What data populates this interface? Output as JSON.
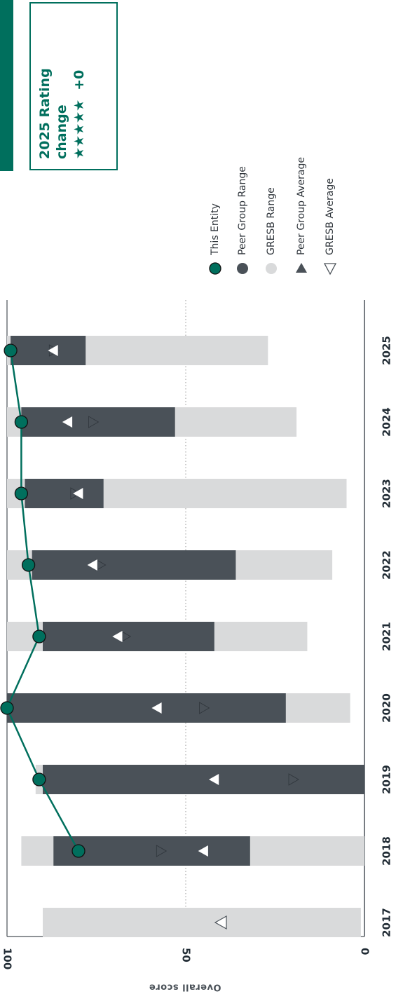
{
  "rating": {
    "title": "2025 Rating change",
    "stars": "★★★★★",
    "change": "+0",
    "accent_color": "#006f5d"
  },
  "legend": {
    "items": [
      {
        "label": "This Entity",
        "marker": "entity-circle-icon"
      },
      {
        "label": "Peer Group Range",
        "marker": "dark-circle-icon"
      },
      {
        "label": "GRESB Range",
        "marker": "light-circle-icon"
      },
      {
        "label": "Peer Group Average",
        "marker": "filled-triangle-icon"
      },
      {
        "label": "GRESB Average",
        "marker": "hollow-triangle-icon"
      }
    ]
  },
  "chart_data": {
    "type": "bar",
    "orientation": "rotated-90",
    "ylabel": "Overall score",
    "ylim": [
      0,
      100
    ],
    "yticks": [
      0,
      50,
      100
    ],
    "grid": "dotted at 50",
    "categories": [
      "2017",
      "2018",
      "2019",
      "2020",
      "2021",
      "2022",
      "2023",
      "2024",
      "2025"
    ],
    "gresb_range": [
      [
        1,
        90
      ],
      [
        0,
        96
      ],
      [
        0,
        92
      ],
      [
        4,
        100
      ],
      [
        16,
        100
      ],
      [
        9,
        100
      ],
      [
        5,
        100
      ],
      [
        19,
        100
      ],
      [
        27,
        100
      ]
    ],
    "peer_group_range": [
      [
        null,
        null
      ],
      [
        32,
        87
      ],
      [
        0,
        90
      ],
      [
        22,
        100
      ],
      [
        42,
        90
      ],
      [
        36,
        93
      ],
      [
        73,
        95
      ],
      [
        53,
        96
      ],
      [
        78,
        99
      ]
    ],
    "this_entity": [
      null,
      80,
      91,
      100,
      91,
      94,
      96,
      96,
      99
    ],
    "peer_group_average": [
      null,
      57,
      20,
      45,
      67,
      74,
      81,
      76,
      87
    ],
    "gresb_average": [
      40,
      45,
      42,
      58,
      69,
      76,
      80,
      83,
      87
    ],
    "colors": {
      "this_entity": "#006f5d",
      "peer_group_range": "#4a5158",
      "gresb_range": "#d9dadb",
      "peer_group_average": "#4a5158",
      "gresb_average": "#ffffff"
    }
  }
}
